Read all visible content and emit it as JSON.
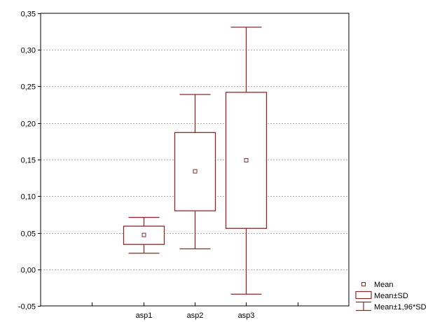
{
  "chart_data": {
    "type": "boxplot",
    "categories": [
      "asp1",
      "asp2",
      "asp3"
    ],
    "series": [
      {
        "stats": [
          {
            "mean": 0.047,
            "sd_low": 0.034,
            "sd_high": 0.059,
            "ci_low": 0.022,
            "ci_high": 0.071
          },
          {
            "mean": 0.134,
            "sd_low": 0.08,
            "sd_high": 0.187,
            "ci_low": 0.028,
            "ci_high": 0.239
          },
          {
            "mean": 0.149,
            "sd_low": 0.056,
            "sd_high": 0.242,
            "ci_low": -0.034,
            "ci_high": 0.331
          }
        ]
      }
    ],
    "y_ticks": [
      "0,35",
      "0,30",
      "0,25",
      "0,20",
      "0,15",
      "0,10",
      "0,05",
      "0,00",
      "-0,05"
    ],
    "y_tick_values": [
      0.35,
      0.3,
      0.25,
      0.2,
      0.15,
      0.1,
      0.05,
      0.0,
      -0.05
    ],
    "ylim": [
      -0.05,
      0.35
    ],
    "x_slots": 6,
    "category_slots": [
      2,
      3,
      4
    ],
    "grid": "horizontal",
    "legend": {
      "placement": "bottom-right",
      "items": [
        "Mean",
        "Mean±SD",
        "Mean±1,96*SD"
      ]
    },
    "colors": {
      "box": "#8b2a2a",
      "grid": "#b0b0b0",
      "axis": "#000000",
      "text": "#000000"
    }
  }
}
